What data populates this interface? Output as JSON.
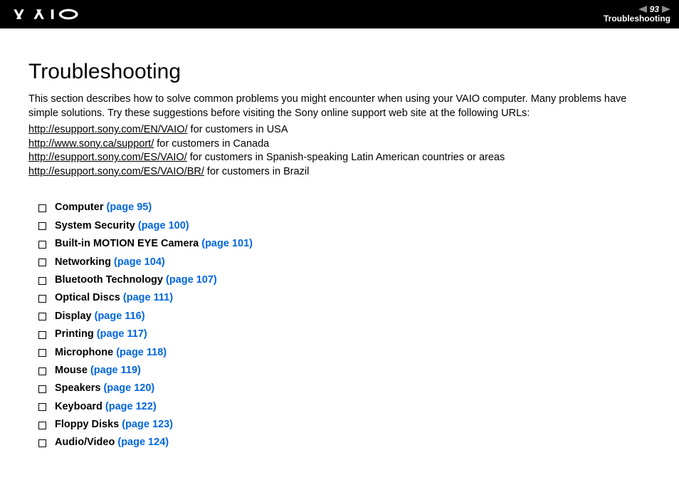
{
  "header": {
    "page_number": "93",
    "section_label": "Troubleshooting",
    "nav_arrow_color": "#8a8a8a",
    "nav_highlight_color": "#ffffff"
  },
  "page": {
    "title": "Troubleshooting",
    "intro": "This section describes how to solve common problems you might encounter when using your VAIO computer. Many problems have simple solutions. Try these suggestions before visiting the Sony online support web site at the following URLs:",
    "support_links": [
      {
        "url": "http://esupport.sony.com/EN/VAIO/",
        "suffix": " for customers in USA"
      },
      {
        "url": "http://www.sony.ca/support/",
        "suffix": " for customers in Canada"
      },
      {
        "url": "http://esupport.sony.com/ES/VAIO/",
        "suffix": " for customers in Spanish-speaking Latin American countries or areas"
      },
      {
        "url": "http://esupport.sony.com/ES/VAIO/BR/",
        "suffix": " for customers in Brazil"
      }
    ],
    "topics": [
      {
        "label": "Computer",
        "page_ref": "(page 95)"
      },
      {
        "label": "System Security",
        "page_ref": "(page 100)"
      },
      {
        "label": "Built-in MOTION EYE Camera",
        "page_ref": "(page 101)"
      },
      {
        "label": "Networking",
        "page_ref": "(page 104)"
      },
      {
        "label": "Bluetooth Technology",
        "page_ref": "(page 107)"
      },
      {
        "label": "Optical Discs",
        "page_ref": "(page 111)"
      },
      {
        "label": "Display",
        "page_ref": "(page 116)"
      },
      {
        "label": "Printing",
        "page_ref": "(page 117)"
      },
      {
        "label": "Microphone",
        "page_ref": "(page 118)"
      },
      {
        "label": "Mouse",
        "page_ref": "(page 119)"
      },
      {
        "label": "Speakers",
        "page_ref": "(page 120)"
      },
      {
        "label": "Keyboard",
        "page_ref": "(page 122)"
      },
      {
        "label": "Floppy Disks",
        "page_ref": "(page 123)"
      },
      {
        "label": "Audio/Video",
        "page_ref": "(page 124)"
      }
    ],
    "link_color": "#0066dd",
    "text_color": "#000000",
    "background_color": "#ffffff"
  }
}
